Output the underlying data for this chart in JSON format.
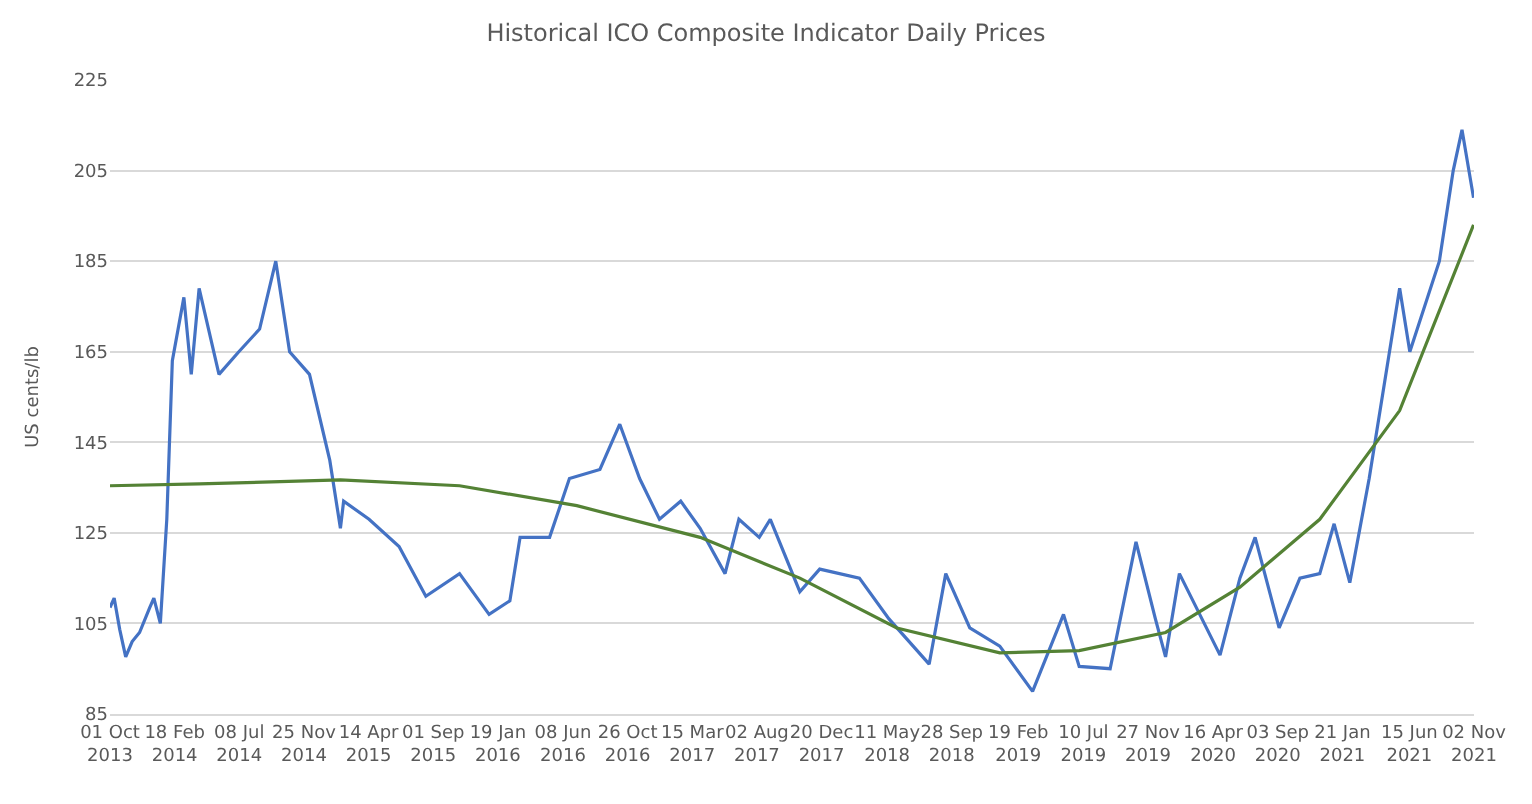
{
  "chart_data": {
    "type": "line",
    "title": "Historical ICO Composite Indicator Daily Prices",
    "ylabel": "US cents/lb",
    "ylim": [
      85,
      225
    ],
    "yticks": [
      85,
      105,
      125,
      145,
      165,
      185,
      205,
      225
    ],
    "xlim": [
      "2013-10-01",
      "2021-11-02"
    ],
    "xticks": [
      {
        "value": "2013-10-01",
        "label": "01 Oct 2013"
      },
      {
        "value": "2014-02-18",
        "label": "18 Feb 2014"
      },
      {
        "value": "2014-07-08",
        "label": "08 Jul 2014"
      },
      {
        "value": "2014-11-25",
        "label": "25 Nov 2014"
      },
      {
        "value": "2015-04-14",
        "label": "14 Apr 2015"
      },
      {
        "value": "2015-09-01",
        "label": "01 Sep 2015"
      },
      {
        "value": "2016-01-19",
        "label": "19 Jan 2016"
      },
      {
        "value": "2016-06-08",
        "label": "08 Jun 2016"
      },
      {
        "value": "2016-10-26",
        "label": "26 Oct 2016"
      },
      {
        "value": "2017-03-15",
        "label": "15 Mar 2017"
      },
      {
        "value": "2017-08-02",
        "label": "02 Aug 2017"
      },
      {
        "value": "2017-12-20",
        "label": "20 Dec 2017"
      },
      {
        "value": "2018-05-11",
        "label": "11 May 2018"
      },
      {
        "value": "2018-09-28",
        "label": "28 Sep 2018"
      },
      {
        "value": "2019-02-19",
        "label": "19 Feb 2019"
      },
      {
        "value": "2019-07-10",
        "label": "10 Jul 2019"
      },
      {
        "value": "2019-11-27",
        "label": "27 Nov 2019"
      },
      {
        "value": "2020-04-16",
        "label": "16 Apr 2020"
      },
      {
        "value": "2020-09-03",
        "label": "03 Sep 2020"
      },
      {
        "value": "2021-01-21",
        "label": "21 Jan 2021"
      },
      {
        "value": "2021-06-15",
        "label": "15 Jun 2021"
      },
      {
        "value": "2021-11-02",
        "label": "02 Nov 2021"
      }
    ],
    "grid": "y",
    "marker": "none",
    "line_style": "solid",
    "series": [
      {
        "color": "#4472c4",
        "x": [
          "2013-10-01",
          "2013-10-10",
          "2013-10-22",
          "2013-11-04",
          "2013-11-18",
          "2013-12-04",
          "2013-12-26",
          "2014-01-04",
          "2014-01-18",
          "2014-02-01",
          "2014-02-13",
          "2014-03-10",
          "2014-03-26",
          "2014-04-12",
          "2014-05-25",
          "2014-07-07",
          "2014-08-21",
          "2014-09-25",
          "2014-10-25",
          "2014-12-07",
          "2015-01-20",
          "2015-02-12",
          "2015-02-19",
          "2015-04-15",
          "2015-06-19",
          "2015-08-16",
          "2015-10-28",
          "2015-12-31",
          "2016-02-14",
          "2016-03-07",
          "2016-05-10",
          "2016-06-22",
          "2016-08-27",
          "2016-10-09",
          "2016-11-21",
          "2017-01-03",
          "2017-02-18",
          "2017-04-01",
          "2017-05-25",
          "2017-06-24",
          "2017-08-07",
          "2017-08-31",
          "2017-11-03",
          "2017-12-16",
          "2018-03-12",
          "2018-05-15",
          "2018-08-10",
          "2018-09-15",
          "2018-11-06",
          "2019-01-10",
          "2019-03-22",
          "2019-05-28",
          "2019-07-01",
          "2019-09-06",
          "2019-11-01",
          "2019-12-13",
          "2020-01-04",
          "2020-02-03",
          "2020-05-01",
          "2020-06-13",
          "2020-07-16",
          "2020-09-06",
          "2020-10-21",
          "2020-12-03",
          "2021-01-03",
          "2021-02-06",
          "2021-03-20",
          "2021-05-25",
          "2021-06-16",
          "2021-08-19",
          "2021-09-18",
          "2021-10-07",
          "2021-11-01"
        ],
        "values": [
          108.5,
          110.6,
          103.7,
          97.6,
          101,
          103,
          108.5,
          110.6,
          105,
          128,
          163,
          177,
          160,
          179,
          160,
          165,
          170,
          185,
          165,
          160,
          141,
          126,
          132,
          128,
          122,
          111,
          116,
          107,
          110,
          124,
          124,
          137,
          139,
          149,
          137,
          128,
          132,
          126,
          116,
          128,
          124,
          128,
          112,
          117,
          115,
          106,
          96,
          116,
          104,
          100,
          90,
          107,
          95.5,
          95,
          123,
          106,
          97.6,
          116,
          98,
          115,
          124,
          104,
          115,
          116,
          127,
          114,
          137,
          179,
          165,
          185,
          205,
          214,
          199
        ]
      },
      {
        "color": "#548235",
        "x": [
          "2013-10-01",
          "2014-04-12",
          "2015-02-12",
          "2015-10-28",
          "2016-07-08",
          "2017-04-01",
          "2017-11-03",
          "2018-06-01",
          "2019-01-10",
          "2019-07-01",
          "2020-01-04",
          "2020-06-13",
          "2020-12-03",
          "2021-05-25",
          "2021-11-01"
        ],
        "values": [
          135.4,
          135.8,
          136.7,
          135.4,
          131,
          124,
          115,
          104,
          98.5,
          99,
          103,
          113,
          128,
          152,
          193
        ]
      }
    ]
  }
}
